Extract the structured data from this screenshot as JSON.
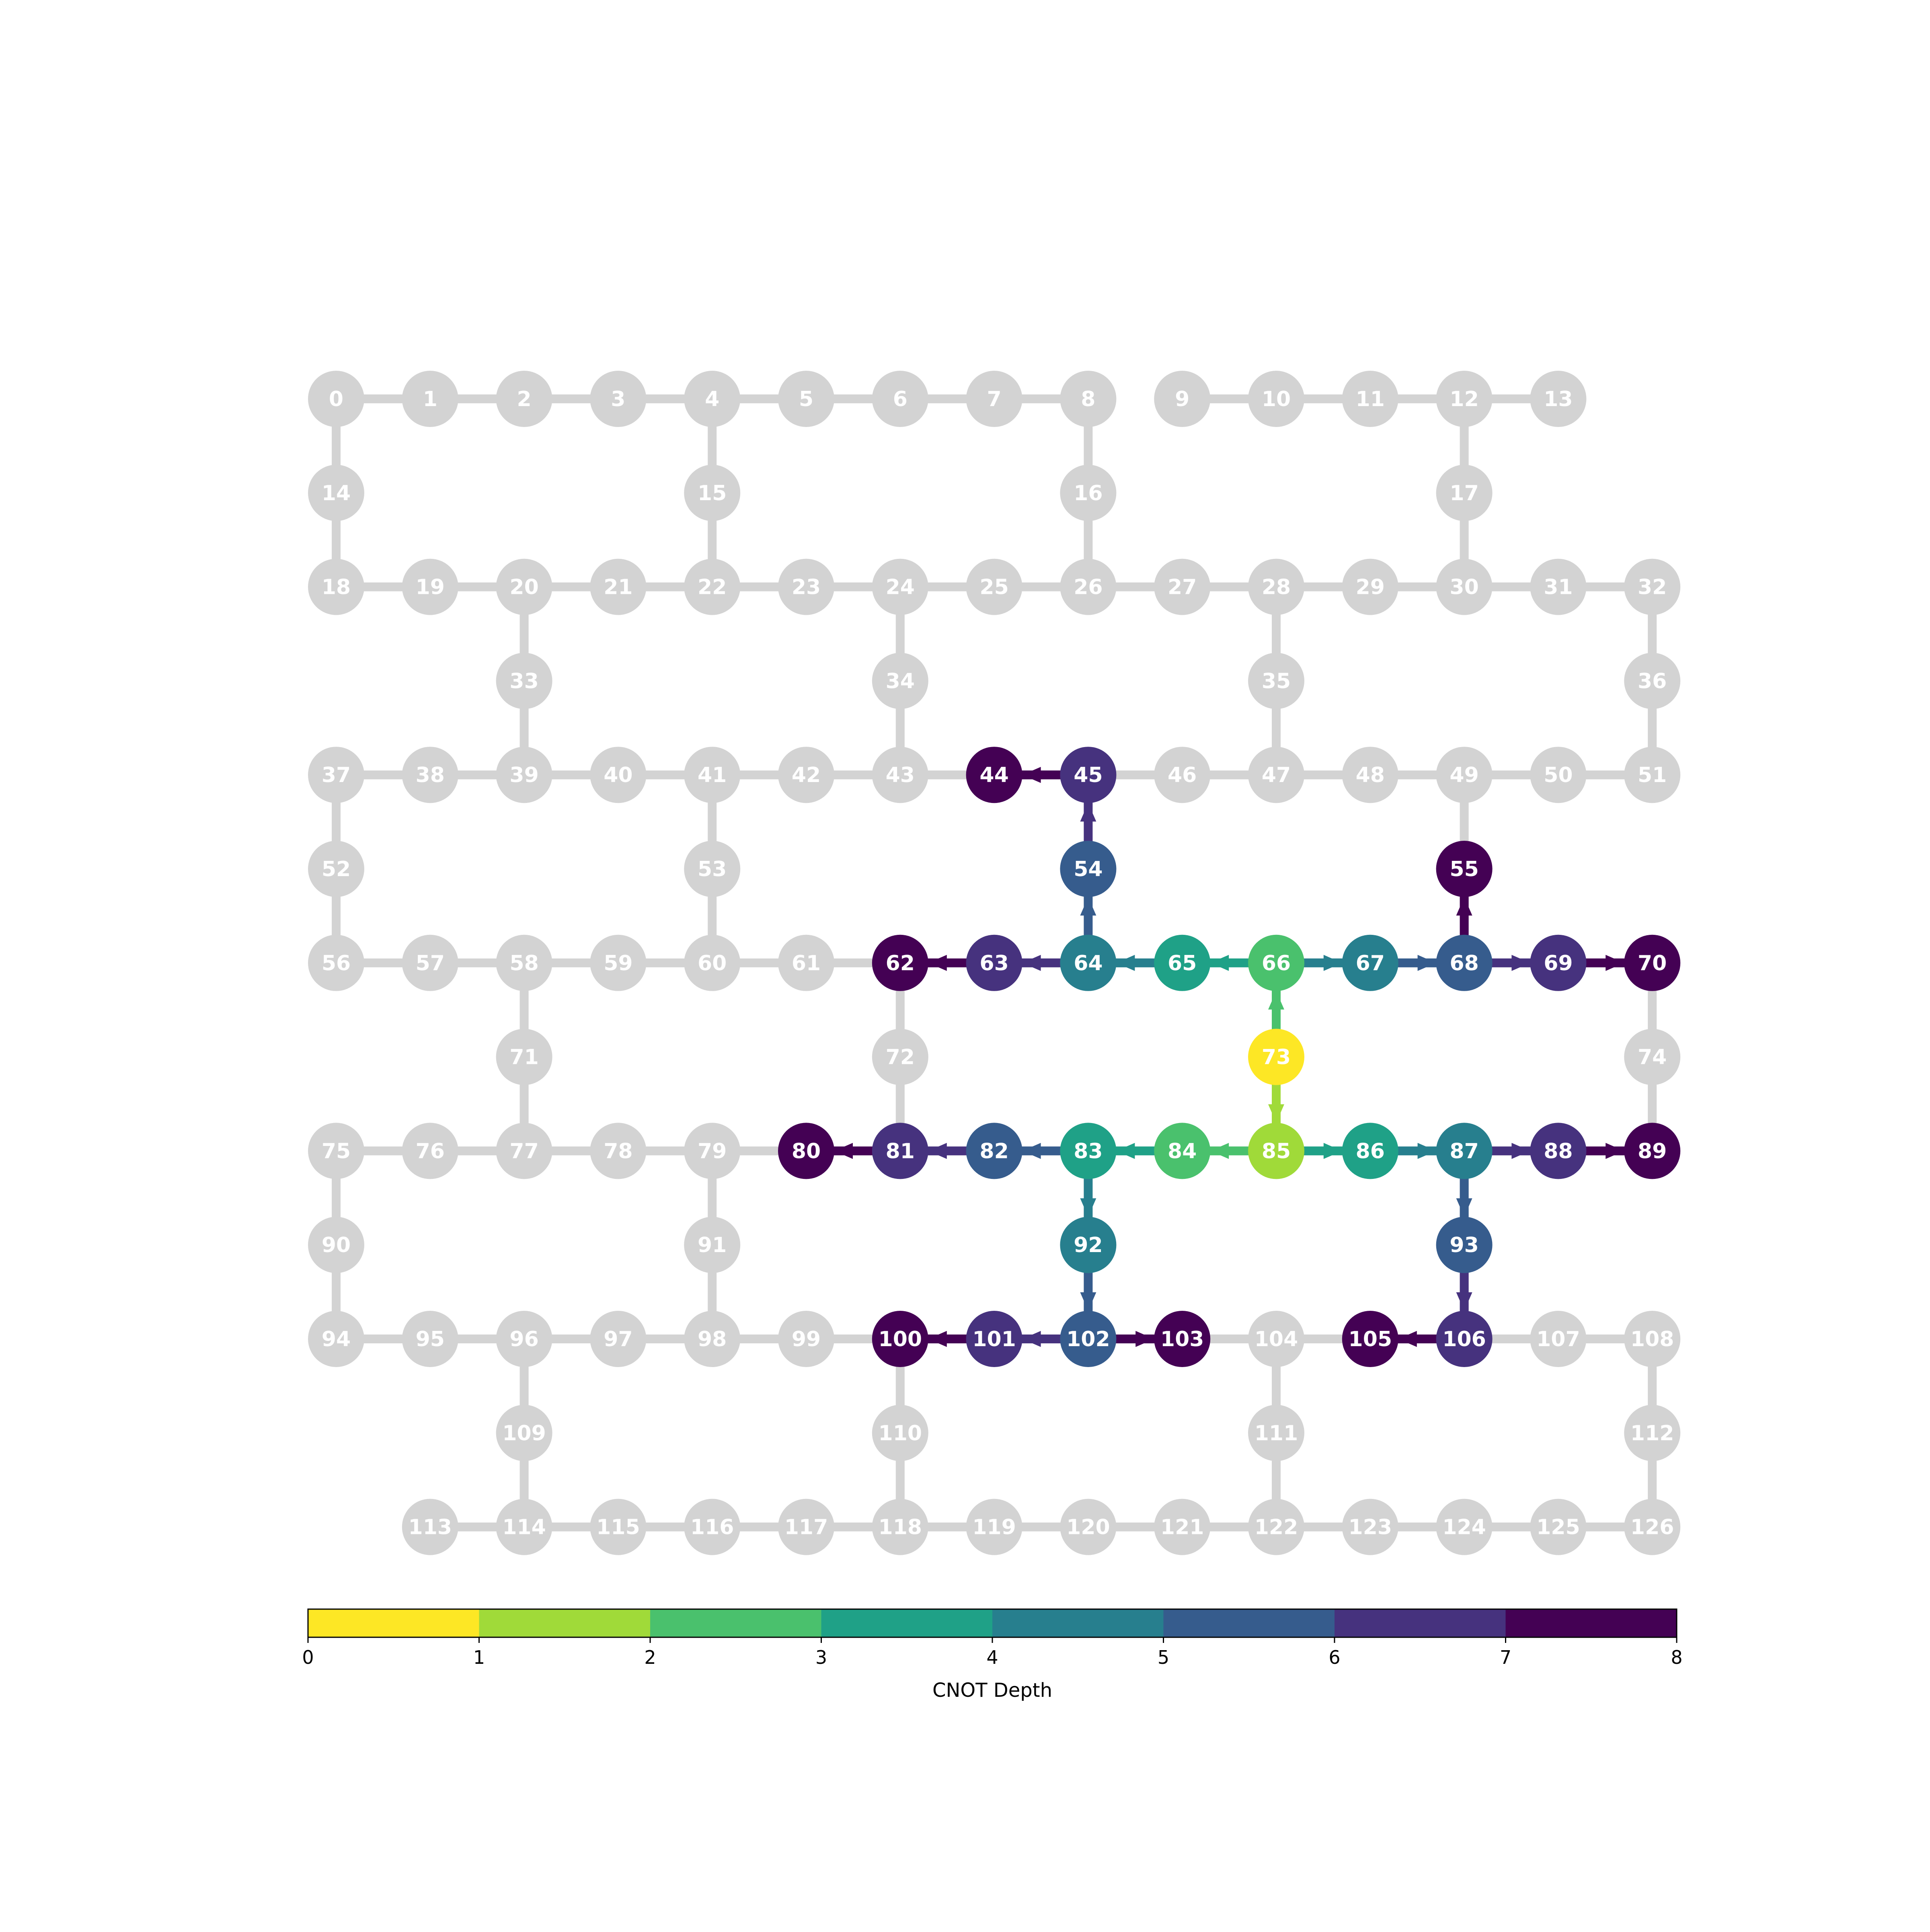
{
  "colorbar": {
    "label": "CNOT Depth",
    "ticks": [
      "0",
      "1",
      "2",
      "3",
      "4",
      "5",
      "6",
      "7",
      "8"
    ],
    "colors": [
      "#fde725",
      "#a0da39",
      "#4ac16d",
      "#1fa187",
      "#277f8e",
      "#365c8d",
      "#46327e",
      "#440154"
    ]
  },
  "inactive_color": "#d3d3d3",
  "depth_colors": {
    "1": "#a0da39",
    "2": "#4ac16d",
    "3": "#1fa187",
    "4": "#277f8e",
    "5": "#365c8d",
    "6": "#46327e",
    "7": "#440154",
    "8": "#440154",
    "0": "#fde725"
  },
  "node_rows": [
    {
      "row": 0,
      "nodes": [
        [
          0,
          0
        ],
        [
          1,
          1
        ],
        [
          2,
          2
        ],
        [
          3,
          3
        ],
        [
          4,
          4
        ],
        [
          5,
          5
        ],
        [
          6,
          6
        ],
        [
          7,
          7
        ],
        [
          8,
          8
        ],
        [
          9,
          9
        ],
        [
          10,
          10
        ],
        [
          11,
          11
        ],
        [
          12,
          12
        ],
        [
          13,
          13
        ]
      ]
    },
    {
      "row": 1,
      "nodes": [
        [
          14,
          0
        ],
        [
          15,
          4
        ],
        [
          16,
          8
        ],
        [
          17,
          12
        ]
      ]
    },
    {
      "row": 2,
      "nodes": [
        [
          18,
          0
        ],
        [
          19,
          1
        ],
        [
          20,
          2
        ],
        [
          21,
          3
        ],
        [
          22,
          4
        ],
        [
          23,
          5
        ],
        [
          24,
          6
        ],
        [
          25,
          7
        ],
        [
          26,
          8
        ],
        [
          27,
          9
        ],
        [
          28,
          10
        ],
        [
          29,
          11
        ],
        [
          30,
          12
        ],
        [
          31,
          13
        ],
        [
          32,
          14
        ]
      ]
    },
    {
      "row": 3,
      "nodes": [
        [
          33,
          2
        ],
        [
          34,
          6
        ],
        [
          35,
          10
        ],
        [
          36,
          14
        ]
      ]
    },
    {
      "row": 4,
      "nodes": [
        [
          37,
          0
        ],
        [
          38,
          1
        ],
        [
          39,
          2
        ],
        [
          40,
          3
        ],
        [
          41,
          4
        ],
        [
          42,
          5
        ],
        [
          43,
          6
        ],
        [
          44,
          7
        ],
        [
          45,
          8
        ],
        [
          46,
          9
        ],
        [
          47,
          10
        ],
        [
          48,
          11
        ],
        [
          49,
          12
        ],
        [
          50,
          13
        ],
        [
          51,
          14
        ]
      ]
    },
    {
      "row": 5,
      "nodes": [
        [
          52,
          0
        ],
        [
          53,
          4
        ],
        [
          54,
          8
        ],
        [
          55,
          12
        ]
      ]
    },
    {
      "row": 6,
      "nodes": [
        [
          56,
          0
        ],
        [
          57,
          1
        ],
        [
          58,
          2
        ],
        [
          59,
          3
        ],
        [
          60,
          4
        ],
        [
          61,
          5
        ],
        [
          62,
          6
        ],
        [
          63,
          7
        ],
        [
          64,
          8
        ],
        [
          65,
          9
        ],
        [
          66,
          10
        ],
        [
          67,
          11
        ],
        [
          68,
          12
        ],
        [
          69,
          13
        ],
        [
          70,
          14
        ]
      ]
    },
    {
      "row": 7,
      "nodes": [
        [
          71,
          2
        ],
        [
          72,
          6
        ],
        [
          73,
          10
        ],
        [
          74,
          14
        ]
      ]
    },
    {
      "row": 8,
      "nodes": [
        [
          75,
          0
        ],
        [
          76,
          1
        ],
        [
          77,
          2
        ],
        [
          78,
          3
        ],
        [
          79,
          4
        ],
        [
          80,
          5
        ],
        [
          81,
          6
        ],
        [
          82,
          7
        ],
        [
          83,
          8
        ],
        [
          84,
          9
        ],
        [
          85,
          10
        ],
        [
          86,
          11
        ],
        [
          87,
          12
        ],
        [
          88,
          13
        ],
        [
          89,
          14
        ]
      ]
    },
    {
      "row": 9,
      "nodes": [
        [
          90,
          0
        ],
        [
          91,
          4
        ],
        [
          92,
          8
        ],
        [
          93,
          12
        ]
      ]
    },
    {
      "row": 10,
      "nodes": [
        [
          94,
          0
        ],
        [
          95,
          1
        ],
        [
          96,
          2
        ],
        [
          97,
          3
        ],
        [
          98,
          4
        ],
        [
          99,
          5
        ],
        [
          100,
          6
        ],
        [
          101,
          7
        ],
        [
          102,
          8
        ],
        [
          103,
          9
        ],
        [
          104,
          10
        ],
        [
          105,
          11
        ],
        [
          106,
          12
        ],
        [
          107,
          13
        ],
        [
          108,
          14
        ]
      ]
    },
    {
      "row": 11,
      "nodes": [
        [
          109,
          2
        ],
        [
          110,
          6
        ],
        [
          111,
          10
        ],
        [
          112,
          14
        ]
      ]
    },
    {
      "row": 12,
      "nodes": [
        [
          113,
          1
        ],
        [
          114,
          2
        ],
        [
          115,
          3
        ],
        [
          116,
          4
        ],
        [
          117,
          5
        ],
        [
          118,
          6
        ],
        [
          119,
          7
        ],
        [
          120,
          8
        ],
        [
          121,
          9
        ],
        [
          122,
          10
        ],
        [
          123,
          11
        ],
        [
          124,
          12
        ],
        [
          125,
          13
        ],
        [
          126,
          14
        ]
      ]
    }
  ],
  "node_depths": {
    "73": 0,
    "85": 1,
    "66": 2,
    "84": 2,
    "65": 3,
    "86": 3,
    "83": 3,
    "64": 4,
    "67": 4,
    "87": 4,
    "92": 4,
    "54": 5,
    "68": 5,
    "82": 5,
    "93": 5,
    "102": 5,
    "45": 6,
    "63": 6,
    "69": 6,
    "81": 6,
    "88": 6,
    "101": 6,
    "106": 6,
    "44": 7,
    "62": 7,
    "55": 7,
    "70": 7,
    "80": 7,
    "89": 7,
    "100": 7,
    "103": 7,
    "105": 7
  },
  "edges": [
    [
      0,
      1
    ],
    [
      1,
      2
    ],
    [
      2,
      3
    ],
    [
      3,
      4
    ],
    [
      4,
      5
    ],
    [
      5,
      6
    ],
    [
      6,
      7
    ],
    [
      7,
      8
    ],
    [
      9,
      10
    ],
    [
      10,
      11
    ],
    [
      11,
      12
    ],
    [
      12,
      13
    ],
    [
      0,
      14
    ],
    [
      14,
      18
    ],
    [
      4,
      15
    ],
    [
      15,
      22
    ],
    [
      8,
      16
    ],
    [
      16,
      26
    ],
    [
      12,
      17
    ],
    [
      17,
      30
    ],
    [
      18,
      19
    ],
    [
      19,
      20
    ],
    [
      20,
      21
    ],
    [
      21,
      22
    ],
    [
      22,
      23
    ],
    [
      23,
      24
    ],
    [
      24,
      25
    ],
    [
      25,
      26
    ],
    [
      26,
      27
    ],
    [
      27,
      28
    ],
    [
      28,
      29
    ],
    [
      29,
      30
    ],
    [
      30,
      31
    ],
    [
      31,
      32
    ],
    [
      20,
      33
    ],
    [
      33,
      39
    ],
    [
      24,
      34
    ],
    [
      34,
      43
    ],
    [
      28,
      35
    ],
    [
      35,
      47
    ],
    [
      32,
      36
    ],
    [
      36,
      51
    ],
    [
      37,
      38
    ],
    [
      38,
      39
    ],
    [
      39,
      40
    ],
    [
      40,
      41
    ],
    [
      41,
      42
    ],
    [
      42,
      43
    ],
    [
      43,
      44
    ],
    [
      44,
      45
    ],
    [
      45,
      46
    ],
    [
      46,
      47
    ],
    [
      47,
      48
    ],
    [
      48,
      49
    ],
    [
      49,
      50
    ],
    [
      50,
      51
    ],
    [
      37,
      52
    ],
    [
      52,
      56
    ],
    [
      41,
      53
    ],
    [
      53,
      60
    ],
    [
      45,
      54
    ],
    [
      54,
      64
    ],
    [
      49,
      55
    ],
    [
      55,
      68
    ],
    [
      56,
      57
    ],
    [
      57,
      58
    ],
    [
      58,
      59
    ],
    [
      59,
      60
    ],
    [
      60,
      61
    ],
    [
      61,
      62
    ],
    [
      62,
      63
    ],
    [
      63,
      64
    ],
    [
      64,
      65
    ],
    [
      65,
      66
    ],
    [
      66,
      67
    ],
    [
      67,
      68
    ],
    [
      68,
      69
    ],
    [
      69,
      70
    ],
    [
      58,
      71
    ],
    [
      71,
      77
    ],
    [
      62,
      72
    ],
    [
      72,
      81
    ],
    [
      66,
      73
    ],
    [
      73,
      85
    ],
    [
      70,
      74
    ],
    [
      74,
      89
    ],
    [
      75,
      76
    ],
    [
      76,
      77
    ],
    [
      77,
      78
    ],
    [
      78,
      79
    ],
    [
      79,
      80
    ],
    [
      80,
      81
    ],
    [
      81,
      82
    ],
    [
      82,
      83
    ],
    [
      83,
      84
    ],
    [
      84,
      85
    ],
    [
      85,
      86
    ],
    [
      86,
      87
    ],
    [
      87,
      88
    ],
    [
      88,
      89
    ],
    [
      75,
      90
    ],
    [
      90,
      94
    ],
    [
      79,
      91
    ],
    [
      91,
      98
    ],
    [
      83,
      92
    ],
    [
      92,
      102
    ],
    [
      87,
      93
    ],
    [
      93,
      106
    ],
    [
      94,
      95
    ],
    [
      95,
      96
    ],
    [
      96,
      97
    ],
    [
      97,
      98
    ],
    [
      98,
      99
    ],
    [
      99,
      100
    ],
    [
      100,
      101
    ],
    [
      101,
      102
    ],
    [
      102,
      103
    ],
    [
      103,
      104
    ],
    [
      104,
      105
    ],
    [
      105,
      106
    ],
    [
      106,
      107
    ],
    [
      107,
      108
    ],
    [
      96,
      109
    ],
    [
      109,
      114
    ],
    [
      100,
      110
    ],
    [
      110,
      118
    ],
    [
      104,
      111
    ],
    [
      111,
      122
    ],
    [
      108,
      112
    ],
    [
      112,
      126
    ],
    [
      113,
      114
    ],
    [
      114,
      115
    ],
    [
      115,
      116
    ],
    [
      116,
      117
    ],
    [
      117,
      118
    ],
    [
      118,
      119
    ],
    [
      119,
      120
    ],
    [
      120,
      121
    ],
    [
      121,
      122
    ],
    [
      122,
      123
    ],
    [
      123,
      124
    ],
    [
      124,
      125
    ],
    [
      125,
      126
    ]
  ],
  "cnot_edges": [
    [
      73,
      66
    ],
    [
      73,
      85
    ],
    [
      66,
      65
    ],
    [
      66,
      67
    ],
    [
      85,
      84
    ],
    [
      85,
      86
    ],
    [
      65,
      64
    ],
    [
      84,
      83
    ],
    [
      86,
      87
    ],
    [
      64,
      54
    ],
    [
      67,
      68
    ],
    [
      83,
      82
    ],
    [
      83,
      92
    ],
    [
      87,
      93
    ],
    [
      54,
      45
    ],
    [
      64,
      63
    ],
    [
      68,
      69
    ],
    [
      82,
      81
    ],
    [
      92,
      102
    ],
    [
      87,
      88
    ],
    [
      93,
      106
    ],
    [
      45,
      44
    ],
    [
      63,
      62
    ],
    [
      68,
      55
    ],
    [
      69,
      70
    ],
    [
      81,
      80
    ],
    [
      88,
      89
    ],
    [
      102,
      101
    ],
    [
      102,
      103
    ],
    [
      106,
      105
    ],
    [
      101,
      100
    ]
  ]
}
